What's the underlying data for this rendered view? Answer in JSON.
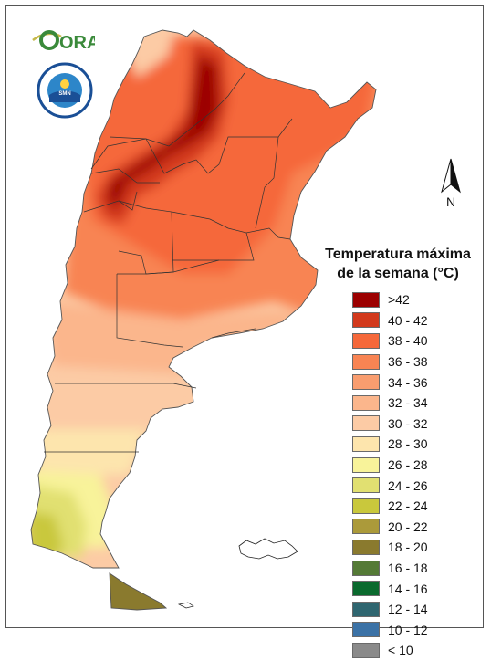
{
  "logo": {
    "text": "ORA"
  },
  "seal": {
    "ring_text": "SERVICIO METEOROLOGICO NACIONAL · ARGENTINA",
    "center_text": "SMN"
  },
  "north_arrow": {
    "label": "N",
    "icon": "north-arrow-icon"
  },
  "legend": {
    "title_line1": "Temperatura máxima",
    "title_line2": "de la semana (°C)",
    "items": [
      {
        "label": ">42",
        "color": "#9c0000"
      },
      {
        "label": "40 - 42",
        "color": "#d2391c"
      },
      {
        "label": "38 - 40",
        "color": "#f5683a"
      },
      {
        "label": "36 - 38",
        "color": "#f88453"
      },
      {
        "label": "34 - 36",
        "color": "#f99d6f"
      },
      {
        "label": "32 - 34",
        "color": "#fbb68c"
      },
      {
        "label": "30 - 32",
        "color": "#fccba5"
      },
      {
        "label": "28 - 30",
        "color": "#fde5ad"
      },
      {
        "label": "26 - 28",
        "color": "#f8f39a"
      },
      {
        "label": "24 - 26",
        "color": "#e1e071"
      },
      {
        "label": "22 - 24",
        "color": "#c9c83c"
      },
      {
        "label": "20 - 22",
        "color": "#ab9a3a"
      },
      {
        "label": "18 - 20",
        "color": "#8a7a2e"
      },
      {
        "label": "16 - 18",
        "color": "#547a36"
      },
      {
        "label": "14 - 16",
        "color": "#0a6a2e"
      },
      {
        "label": "12 - 14",
        "color": "#2f6670"
      },
      {
        "label": "10 - 12",
        "color": "#3b72a6"
      },
      {
        "label": "< 10",
        "color": "#8a8a8a"
      }
    ]
  },
  "map_colors": {
    "c42": "#9c0000",
    "c40": "#d2391c",
    "c38": "#f5683a",
    "c36": "#f88453",
    "c34": "#f99d6f",
    "c32": "#fbb68c",
    "c30": "#fccba5",
    "c28": "#fde5ad",
    "c26": "#f8f39a",
    "c24": "#e1e071",
    "c22": "#c9c83c",
    "c20": "#ab9a3a",
    "c18": "#8a7a2e"
  }
}
